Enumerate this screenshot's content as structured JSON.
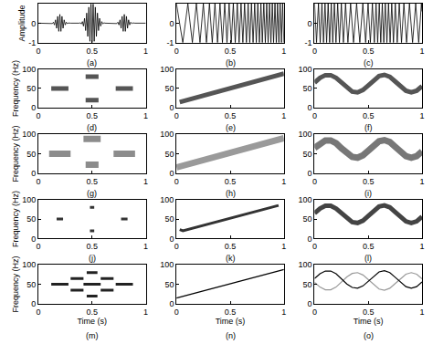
{
  "chart_data": [
    {
      "type": "line",
      "title": "(a)",
      "y_label": "Amplitude",
      "xlim": [
        0,
        1
      ],
      "xticks": [
        0,
        0.5,
        1
      ],
      "ylim": [
        -1,
        1
      ],
      "yticks": [
        -1,
        0,
        1
      ],
      "grid": false,
      "series": [
        {
          "color": "#000000",
          "line_style": "solid",
          "x": [
            0,
            0.11,
            0.12,
            0.13,
            0.14,
            0.15,
            0.16,
            0.17,
            0.18,
            0.19,
            0.2,
            0.21,
            0.22,
            0.23,
            0.24,
            0.25,
            0.26,
            0.27,
            0.28,
            0.3,
            0.38,
            0.39,
            0.4,
            0.41,
            0.42,
            0.43,
            0.44,
            0.45,
            0.46,
            0.47,
            0.48,
            0.49,
            0.5,
            0.51,
            0.52,
            0.53,
            0.54,
            0.55,
            0.56,
            0.57,
            0.58,
            0.59,
            0.6,
            0.61,
            0.62,
            0.7,
            0.72,
            0.73,
            0.74,
            0.75,
            0.76,
            0.77,
            0.78,
            0.79,
            0.8,
            0.81,
            0.82,
            0.83,
            0.84,
            0.85,
            0.86,
            0.87,
            0.88,
            0.9,
            1
          ],
          "values": [
            0,
            0,
            0.01,
            -0.02,
            0.05,
            -0.09,
            0.17,
            -0.26,
            0.35,
            -0.42,
            0.45,
            -0.42,
            0.35,
            -0.26,
            0.17,
            -0.09,
            0.05,
            -0.02,
            0.01,
            0,
            0,
            0.02,
            -0.04,
            0.08,
            -0.15,
            0.25,
            -0.38,
            0.52,
            -0.68,
            0.82,
            -0.93,
            0.98,
            -1.0,
            0.98,
            -0.93,
            0.82,
            -0.68,
            0.52,
            -0.38,
            0.25,
            -0.15,
            0.08,
            -0.04,
            0.02,
            0,
            0,
            0.01,
            -0.02,
            0.05,
            -0.09,
            0.17,
            -0.26,
            0.35,
            -0.42,
            0.45,
            -0.42,
            0.35,
            -0.26,
            0.17,
            -0.09,
            0.05,
            -0.02,
            0.01,
            0,
            0
          ]
        }
      ]
    },
    {
      "type": "line",
      "title": "(b)",
      "xlim": [
        0,
        1
      ],
      "xticks": [
        0,
        0.5,
        1
      ],
      "ylim": [
        -1,
        1
      ],
      "yticks": [
        -1,
        0,
        1
      ],
      "grid": false,
      "series": [
        {
          "color": "#000000",
          "line_style": "solid",
          "x": [
            0,
            0.0585,
            0.106,
            0.148,
            0.185,
            0.219,
            0.25,
            0.279,
            0.307,
            0.333,
            0.358,
            0.382,
            0.405,
            0.428,
            0.449,
            0.47,
            0.49,
            0.51,
            0.529,
            0.547,
            0.566,
            0.583,
            0.601,
            0.618,
            0.634,
            0.651,
            0.667,
            0.682,
            0.698,
            0.713,
            0.728,
            0.743,
            0.757,
            0.772,
            0.786,
            0.799,
            0.813,
            0.827,
            0.84,
            0.853,
            0.866,
            0.879,
            0.892,
            0.904,
            0.917,
            0.929,
            0.941,
            0.953,
            0.965,
            0.977,
            0.988,
            1.0
          ],
          "values": [
            1,
            -1,
            1,
            -1,
            1,
            -1,
            1,
            -1,
            1,
            -1,
            1,
            -1,
            1,
            -1,
            1,
            -1,
            1,
            -1,
            1,
            -1,
            1,
            -1,
            1,
            -1,
            1,
            -1,
            1,
            -1,
            1,
            -1,
            1,
            -1,
            1,
            -1,
            1,
            -1,
            1,
            -1,
            1,
            -1,
            1,
            -1,
            1,
            -1,
            1,
            -1,
            1,
            -1,
            1,
            -1,
            1,
            -1
          ]
        }
      ]
    },
    {
      "type": "line",
      "title": "(c)",
      "xlim": [
        0,
        1
      ],
      "xticks": [
        0,
        0.5,
        1
      ],
      "ylim": [
        -1,
        1
      ],
      "yticks": [
        -1,
        0,
        1
      ],
      "grid": false,
      "series": [
        {
          "color": "#000000",
          "line_style": "solid",
          "x": [
            0,
            0.018,
            0.036,
            0.052,
            0.068,
            0.083,
            0.097,
            0.112,
            0.126,
            0.14,
            0.155,
            0.169,
            0.184,
            0.199,
            0.215,
            0.231,
            0.249,
            0.268,
            0.288,
            0.31,
            0.335,
            0.362,
            0.391,
            0.421,
            0.449,
            0.475,
            0.498,
            0.519,
            0.538,
            0.556,
            0.572,
            0.587,
            0.602,
            0.616,
            0.63,
            0.644,
            0.658,
            0.673,
            0.688,
            0.703,
            0.718,
            0.734,
            0.751,
            0.769,
            0.788,
            0.809,
            0.831,
            0.856,
            0.883,
            0.912,
            0.941,
            0.969,
            0.994,
            1.0
          ],
          "values": [
            1,
            -1,
            1,
            -1,
            1,
            -1,
            1,
            -1,
            1,
            -1,
            1,
            -1,
            1,
            -1,
            1,
            -1,
            1,
            -1,
            1,
            -1,
            1,
            -1,
            1,
            -1,
            1,
            -1,
            1,
            -1,
            1,
            -1,
            1,
            -1,
            1,
            -1,
            1,
            -1,
            1,
            -1,
            1,
            -1,
            1,
            -1,
            1,
            -1,
            1,
            -1,
            1,
            -1,
            1,
            -1,
            1,
            -1,
            1,
            0.6
          ]
        }
      ]
    },
    {
      "type": "line",
      "title": "(d)",
      "y_label": "Frequency (Hz)",
      "xlim": [
        0,
        1
      ],
      "xticks": [
        0,
        0.5,
        1
      ],
      "ylim": [
        0,
        100
      ],
      "yticks": [
        0,
        50,
        100
      ],
      "grid": false,
      "series": [
        {
          "color": "#555555",
          "line_style": "thick",
          "x": [
            0.12,
            0.28,
            0.29,
            0.72,
            0.88,
            0.89,
            0.44,
            0.56,
            0.57,
            0.44,
            0.56
          ],
          "values": [
            50,
            50,
            null,
            50,
            50,
            null,
            80,
            80,
            null,
            20,
            20
          ]
        }
      ]
    },
    {
      "type": "line",
      "title": "(e)",
      "xlim": [
        0,
        1
      ],
      "xticks": [
        0,
        0.5,
        1
      ],
      "ylim": [
        0,
        100
      ],
      "yticks": [
        0,
        50,
        100
      ],
      "grid": false,
      "series": [
        {
          "color": "#555555",
          "line_style": "thick",
          "x": [
            0.03,
            1
          ],
          "values": [
            15,
            88
          ]
        }
      ]
    },
    {
      "type": "line",
      "title": "(f)",
      "xlim": [
        0,
        1
      ],
      "xticks": [
        0,
        0.5,
        1
      ],
      "ylim": [
        0,
        100
      ],
      "yticks": [
        0,
        50,
        100
      ],
      "grid": false,
      "series": [
        {
          "color": "#555555",
          "line_style": "thick",
          "x": [
            0,
            0.05,
            0.1,
            0.15,
            0.2,
            0.25,
            0.3,
            0.35,
            0.4,
            0.45,
            0.5,
            0.55,
            0.6,
            0.65,
            0.7,
            0.75,
            0.8,
            0.85,
            0.9,
            0.95,
            1
          ],
          "values": [
            65,
            77,
            84,
            84,
            77,
            64,
            51,
            42,
            40,
            46,
            58,
            72,
            82,
            85,
            80,
            68,
            55,
            44,
            40,
            44,
            56
          ]
        }
      ]
    },
    {
      "type": "line",
      "title": "(g)",
      "y_label": "Frequency (Hz)",
      "xlim": [
        0,
        1
      ],
      "xticks": [
        0,
        0.5,
        1
      ],
      "ylim": [
        0,
        100
      ],
      "yticks": [
        0,
        50,
        100
      ],
      "grid": false,
      "series": [
        {
          "color": "#8c8c8c",
          "line_style": "heavy",
          "x": [
            0.1,
            0.3,
            0.31,
            0.7,
            0.9,
            0.91,
            0.42,
            0.58,
            0.59,
            0.44,
            0.56
          ],
          "values": [
            50,
            50,
            null,
            50,
            50,
            null,
            88,
            88,
            null,
            22,
            22
          ]
        }
      ]
    },
    {
      "type": "line",
      "title": "(h)",
      "xlim": [
        0,
        1
      ],
      "xticks": [
        0,
        0.5,
        1
      ],
      "ylim": [
        0,
        100
      ],
      "yticks": [
        0,
        50,
        100
      ],
      "grid": false,
      "series": [
        {
          "color": "#9a9a9a",
          "line_style": "heavy",
          "x": [
            0,
            1
          ],
          "values": [
            15,
            90
          ]
        }
      ]
    },
    {
      "type": "line",
      "title": "(i)",
      "xlim": [
        0,
        1
      ],
      "xticks": [
        0,
        0.5,
        1
      ],
      "ylim": [
        0,
        100
      ],
      "yticks": [
        0,
        50,
        100
      ],
      "grid": false,
      "series": [
        {
          "color": "#777777",
          "line_style": "heavy",
          "x": [
            0,
            0.05,
            0.1,
            0.15,
            0.2,
            0.25,
            0.3,
            0.35,
            0.4,
            0.45,
            0.5,
            0.55,
            0.6,
            0.65,
            0.7,
            0.75,
            0.8,
            0.85,
            0.9,
            0.95,
            1
          ],
          "values": [
            65,
            77,
            84,
            84,
            77,
            64,
            51,
            42,
            40,
            46,
            58,
            72,
            82,
            85,
            80,
            68,
            55,
            44,
            40,
            44,
            56
          ]
        }
      ]
    },
    {
      "type": "line",
      "title": "(j)",
      "y_label": "Frequency (Hz)",
      "xlim": [
        0,
        1
      ],
      "xticks": [
        0,
        0.5,
        1
      ],
      "ylim": [
        0,
        100
      ],
      "yticks": [
        0,
        50,
        100
      ],
      "grid": false,
      "series": [
        {
          "color": "#333333",
          "line_style": "medium",
          "x": [
            0.17,
            0.23,
            0.24,
            0.77,
            0.83,
            0.84,
            0.48,
            0.52,
            0.53,
            0.48,
            0.52
          ],
          "values": [
            50,
            50,
            null,
            50,
            50,
            null,
            80,
            80,
            null,
            20,
            20
          ]
        }
      ]
    },
    {
      "type": "line",
      "title": "(k)",
      "xlim": [
        0,
        1
      ],
      "xticks": [
        0,
        0.5,
        1
      ],
      "ylim": [
        0,
        100
      ],
      "yticks": [
        0,
        50,
        100
      ],
      "grid": false,
      "series": [
        {
          "color": "#333333",
          "line_style": "medium",
          "x": [
            0.03,
            0.06,
            0.95
          ],
          "values": [
            23,
            20,
            85
          ]
        }
      ]
    },
    {
      "type": "line",
      "title": "(l)",
      "xlim": [
        0,
        1
      ],
      "xticks": [
        0,
        0.5,
        1
      ],
      "ylim": [
        0,
        100
      ],
      "yticks": [
        0,
        50,
        100
      ],
      "grid": false,
      "series": [
        {
          "color": "#444444",
          "line_style": "thick",
          "x": [
            0,
            0.05,
            0.1,
            0.15,
            0.2,
            0.25,
            0.3,
            0.35,
            0.4,
            0.45,
            0.5,
            0.55,
            0.6,
            0.65,
            0.7,
            0.75,
            0.8,
            0.85,
            0.9,
            0.95,
            1
          ],
          "values": [
            65,
            77,
            84,
            84,
            77,
            64,
            51,
            42,
            40,
            46,
            58,
            72,
            82,
            85,
            80,
            68,
            55,
            44,
            40,
            44,
            56
          ]
        }
      ]
    },
    {
      "type": "line",
      "title": "(m)",
      "x_label": "Time (s)",
      "y_label": "Frequency (Hz)",
      "xlim": [
        0,
        1
      ],
      "xticks": [
        0,
        0.5,
        1
      ],
      "ylim": [
        0,
        100
      ],
      "yticks": [
        0,
        50,
        100
      ],
      "grid": false,
      "series": [
        {
          "color": "#222222",
          "line_style": "medium",
          "x": [
            0.12,
            0.28,
            0.29,
            0.42,
            0.58,
            0.59,
            0.72,
            0.88,
            0.89,
            0.3,
            0.42,
            0.43,
            0.58,
            0.7,
            0.71,
            0.3,
            0.42,
            0.43,
            0.58,
            0.7,
            0.71,
            0.45,
            0.55,
            0.56,
            0.45,
            0.55
          ],
          "values": [
            50,
            50,
            null,
            50,
            50,
            null,
            50,
            50,
            null,
            65,
            65,
            null,
            65,
            65,
            null,
            35,
            35,
            null,
            35,
            35,
            null,
            80,
            80,
            null,
            20,
            20
          ]
        }
      ]
    },
    {
      "type": "line",
      "title": "(n)",
      "x_label": "Time (s)",
      "xlim": [
        0,
        1
      ],
      "xticks": [
        0,
        0.5,
        1
      ],
      "ylim": [
        0,
        100
      ],
      "yticks": [
        0,
        50,
        100
      ],
      "grid": false,
      "series": [
        {
          "color": "#000000",
          "line_style": "thin",
          "x": [
            0,
            1
          ],
          "values": [
            15,
            88
          ]
        }
      ]
    },
    {
      "type": "line",
      "title": "(o)",
      "x_label": "Time (s)",
      "xlim": [
        0,
        1
      ],
      "xticks": [
        0,
        0.5,
        1
      ],
      "ylim": [
        0,
        100
      ],
      "yticks": [
        0,
        50,
        100
      ],
      "grid": false,
      "series": [
        {
          "color": "#999999",
          "line_style": "thin",
          "x": [
            0,
            0.05,
            0.1,
            0.15,
            0.2,
            0.25,
            0.3,
            0.35,
            0.4,
            0.45,
            0.5,
            0.55,
            0.6,
            0.65,
            0.7,
            0.75,
            0.8,
            0.85,
            0.9,
            0.95,
            1
          ],
          "values": [
            55,
            43,
            36,
            36,
            43,
            56,
            69,
            78,
            80,
            74,
            62,
            48,
            38,
            35,
            40,
            52,
            65,
            76,
            80,
            76,
            64
          ]
        },
        {
          "color": "#000000",
          "line_style": "thin",
          "x": [
            0,
            0.05,
            0.1,
            0.15,
            0.2,
            0.25,
            0.3,
            0.35,
            0.4,
            0.45,
            0.5,
            0.55,
            0.6,
            0.65,
            0.7,
            0.75,
            0.8,
            0.85,
            0.9,
            0.95,
            1
          ],
          "values": [
            65,
            77,
            84,
            84,
            77,
            64,
            51,
            42,
            40,
            46,
            58,
            72,
            82,
            85,
            80,
            68,
            55,
            44,
            40,
            44,
            56
          ]
        }
      ]
    }
  ]
}
